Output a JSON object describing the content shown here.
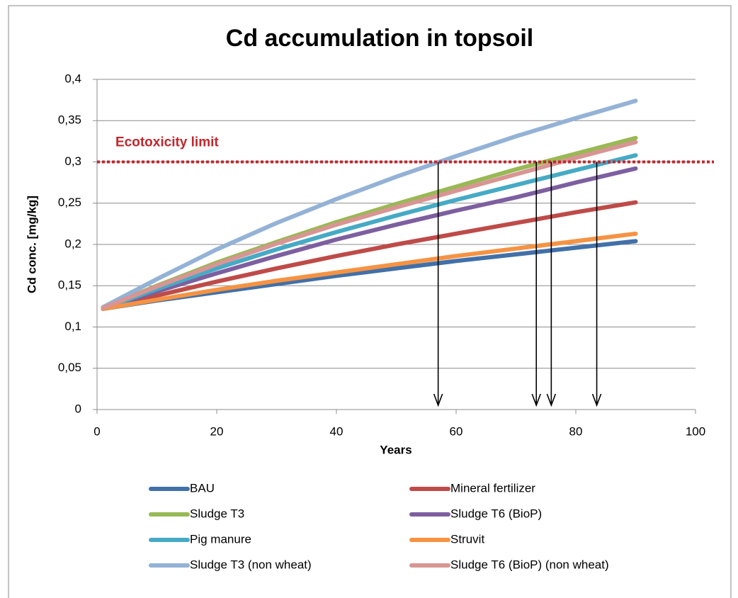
{
  "chart_data": {
    "type": "line",
    "title": "Cd accumulation in topsoil",
    "xlabel": "Years",
    "ylabel": "Cd conc. [mg/kg]",
    "x": [
      1,
      10,
      20,
      30,
      40,
      50,
      60,
      70,
      80,
      90
    ],
    "series": [
      {
        "name": "BAU",
        "color": "#4270a8",
        "values": [
          0.122,
          0.132,
          0.142,
          0.152,
          0.162,
          0.171,
          0.18,
          0.188,
          0.196,
          0.204
        ]
      },
      {
        "name": "Mineral fertilizer",
        "color": "#be4b48",
        "values": [
          0.122,
          0.138,
          0.155,
          0.171,
          0.186,
          0.2,
          0.213,
          0.226,
          0.239,
          0.251
        ]
      },
      {
        "name": "Sludge T3",
        "color": "#98b954",
        "values": [
          0.123,
          0.15,
          0.178,
          0.203,
          0.227,
          0.249,
          0.27,
          0.291,
          0.31,
          0.329
        ]
      },
      {
        "name": "Sludge T6 (BioP)",
        "color": "#7d5fa0",
        "values": [
          0.122,
          0.143,
          0.165,
          0.186,
          0.206,
          0.224,
          0.241,
          0.257,
          0.275,
          0.292
        ]
      },
      {
        "name": "Pig manure",
        "color": "#46aac5",
        "values": [
          0.122,
          0.146,
          0.171,
          0.194,
          0.215,
          0.235,
          0.254,
          0.272,
          0.29,
          0.308
        ]
      },
      {
        "name": "Struvit",
        "color": "#f59343",
        "values": [
          0.122,
          0.133,
          0.145,
          0.156,
          0.166,
          0.176,
          0.186,
          0.195,
          0.204,
          0.213
        ]
      },
      {
        "name": "Sludge T3 (non wheat)",
        "color": "#94b2d6",
        "values": [
          0.124,
          0.158,
          0.194,
          0.226,
          0.255,
          0.282,
          0.307,
          0.331,
          0.353,
          0.374
        ]
      },
      {
        "name": "Sludge T6 (BioP) (non wheat)",
        "color": "#d89593",
        "values": [
          0.123,
          0.149,
          0.176,
          0.201,
          0.224,
          0.245,
          0.265,
          0.285,
          0.305,
          0.324
        ]
      }
    ],
    "xlim": [
      0,
      100
    ],
    "xticks": [
      0,
      20,
      40,
      60,
      80,
      100
    ],
    "ylim": [
      0,
      0.4
    ],
    "yticks": [
      0,
      {
        "value": 0.05,
        "label": "0,05"
      },
      {
        "value": 0.1,
        "label": "0,1"
      },
      {
        "value": 0.15,
        "label": "0,15"
      },
      {
        "value": 0.2,
        "label": "0,2"
      },
      {
        "value": 0.25,
        "label": "0,25"
      },
      {
        "value": 0.3,
        "label": "0,3"
      },
      {
        "value": 0.35,
        "label": "0,35"
      },
      {
        "value": 0.4,
        "label": "0,4"
      }
    ],
    "grid": true,
    "threshold": {
      "label": "Ecotoxicity limit",
      "value": 0.3,
      "color": "#c0272d"
    },
    "crossings": [
      57,
      73.4,
      75.9,
      83.5
    ],
    "legend": "bottom"
  }
}
